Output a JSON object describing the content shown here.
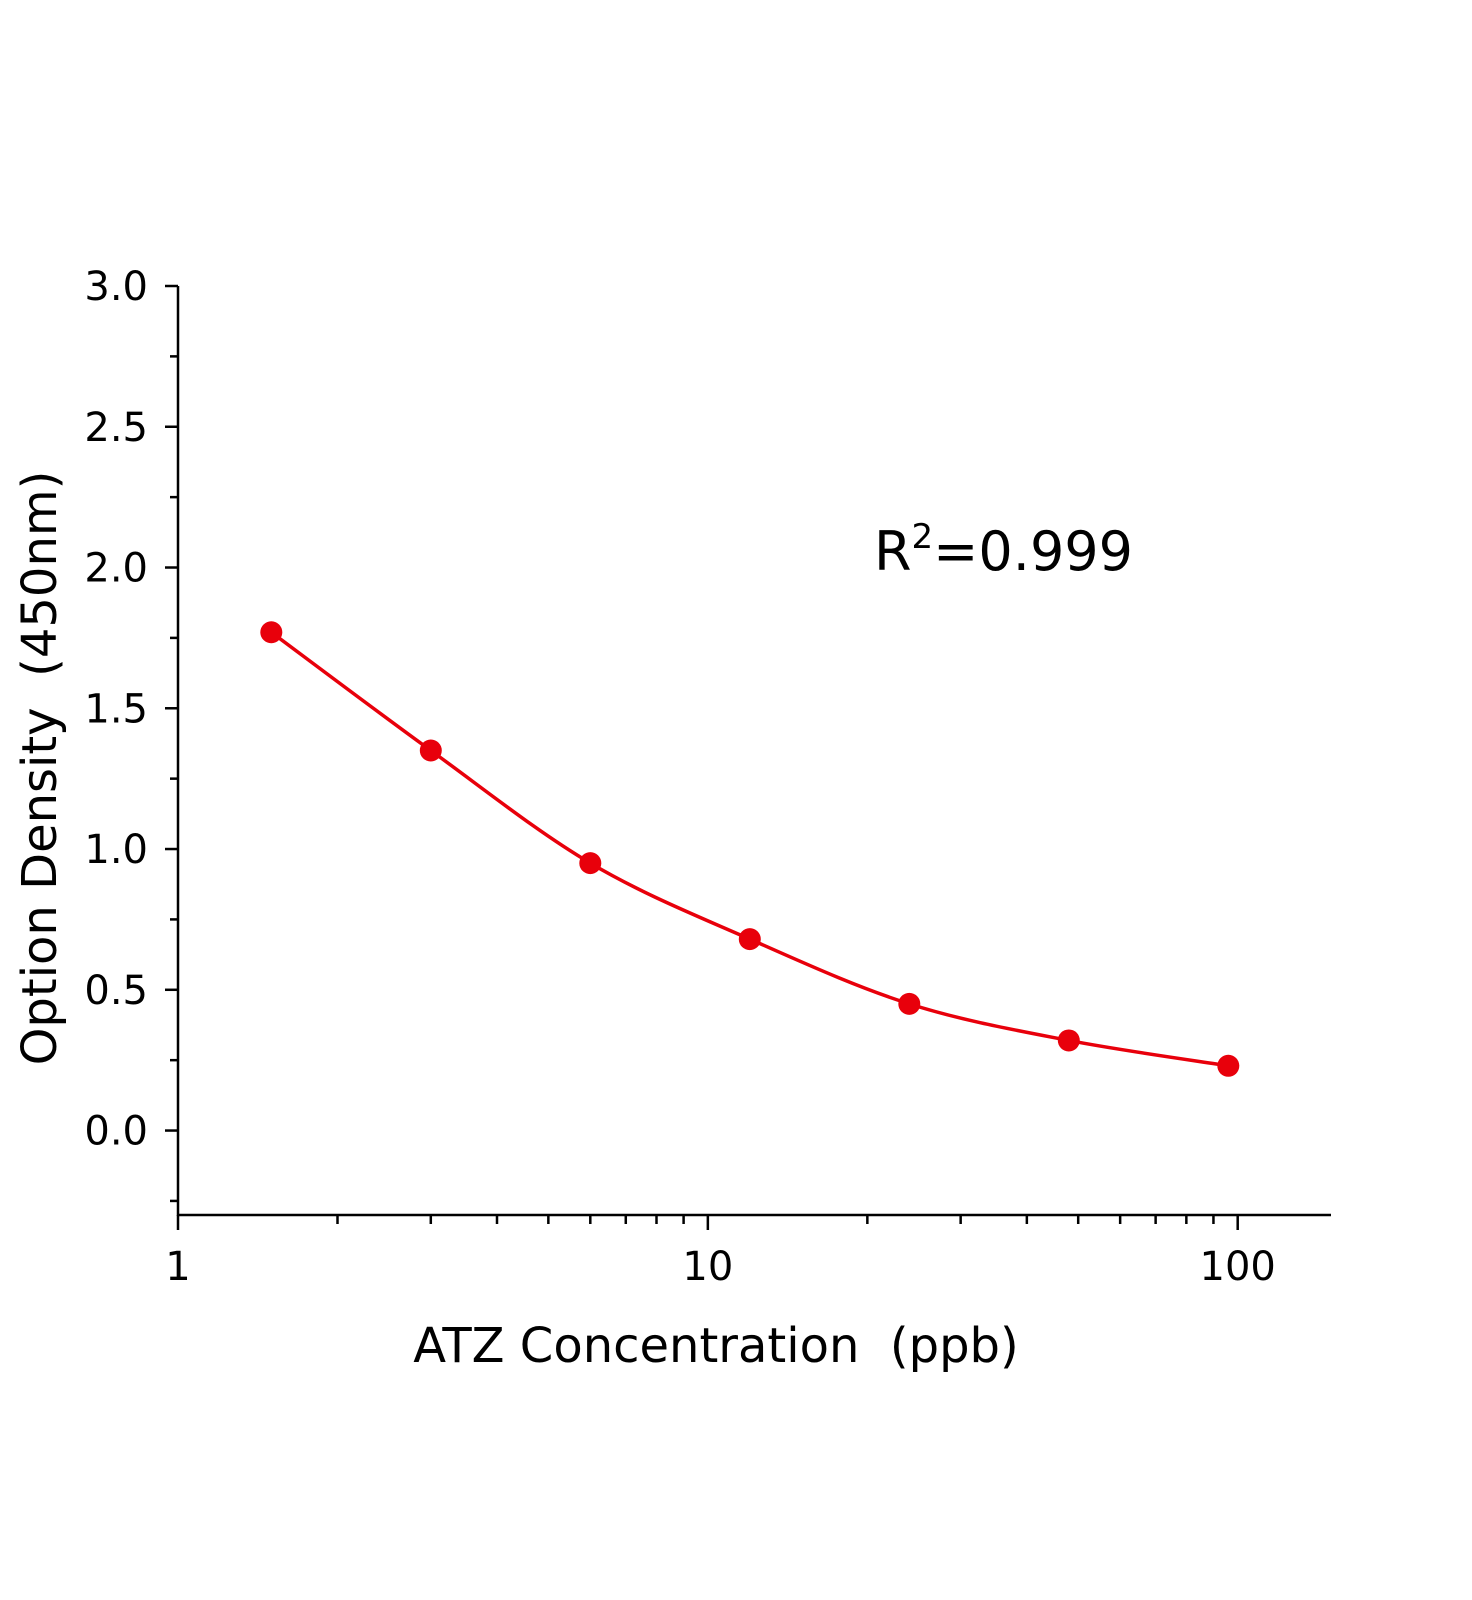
{
  "chart_data": {
    "type": "scatter",
    "xlabel": "ATZ Concentration  (ppb)",
    "ylabel": "Option Density  (450nm)",
    "annotation": {
      "base": "R",
      "sup": "2",
      "rest": "=0.999"
    },
    "xscale": "log",
    "x": [
      1.5,
      3,
      6,
      12,
      24,
      48,
      96
    ],
    "series": [
      {
        "color": "#e8000b",
        "values": [
          1.77,
          1.35,
          0.95,
          0.68,
          0.45,
          0.32,
          0.23
        ]
      }
    ],
    "xlim": [
      1,
      150
    ],
    "ylim": [
      -0.3,
      3.0
    ],
    "xticks": [
      1,
      10,
      100
    ],
    "xminorticks": [
      2,
      3,
      4,
      5,
      6,
      7,
      8,
      9,
      20,
      30,
      40,
      50,
      60,
      70,
      80,
      90
    ],
    "yticks": [
      {
        "value": 0,
        "label": "0.0"
      },
      0.5,
      {
        "value": 1,
        "label": "1.0"
      },
      1.5,
      {
        "value": 2,
        "label": "2.0"
      },
      2.5,
      {
        "value": 3,
        "label": "3.0"
      }
    ],
    "yminorticks": [
      -0.25,
      0.25,
      0.75,
      1.25,
      1.75,
      2.25,
      2.75
    ]
  }
}
